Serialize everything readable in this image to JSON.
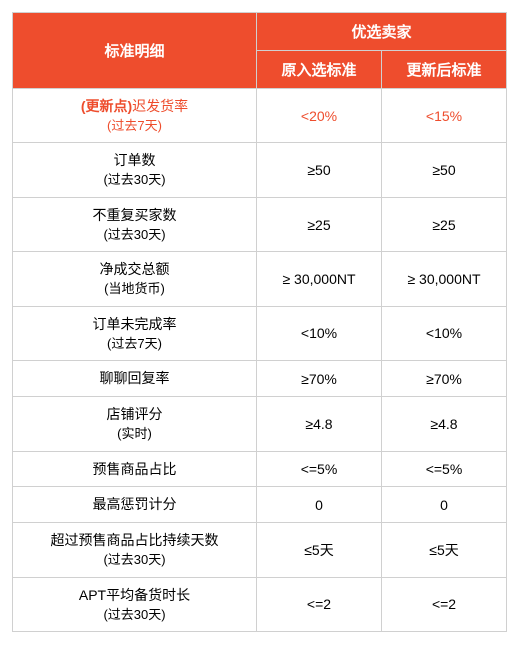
{
  "table": {
    "type": "table",
    "header_bg": "#ee4d2d",
    "header_text_color": "#ffffff",
    "border_color": "#d0d0d0",
    "highlight_color": "#ee4d2d",
    "columns": {
      "main_header": "标准明细",
      "group_header": "优选卖家",
      "sub1": "原入选标准",
      "sub2": "更新后标准"
    },
    "rows": [
      {
        "highlight": true,
        "prefix": "(更新点)",
        "label_main": "迟发货率",
        "label_sub": "(过去7天)",
        "col1": "<20%",
        "col2": "<15%"
      },
      {
        "highlight": false,
        "prefix": "",
        "label_main": "订单数",
        "label_sub": "(过去30天)",
        "col1": "≥50",
        "col2": "≥50"
      },
      {
        "highlight": false,
        "prefix": "",
        "label_main": "不重复买家数",
        "label_sub": "(过去30天)",
        "col1": "≥25",
        "col2": "≥25"
      },
      {
        "highlight": false,
        "prefix": "",
        "label_main": "净成交总额",
        "label_sub": "(当地货币)",
        "col1": "≥ 30,000NT",
        "col2": "≥ 30,000NT"
      },
      {
        "highlight": false,
        "prefix": "",
        "label_main": "订单未完成率",
        "label_sub": "(过去7天)",
        "col1": "<10%",
        "col2": "<10%"
      },
      {
        "highlight": false,
        "prefix": "",
        "label_main": "聊聊回复率",
        "label_sub": "",
        "col1": "≥70%",
        "col2": "≥70%"
      },
      {
        "highlight": false,
        "prefix": "",
        "label_main": "店铺评分",
        "label_sub": "(实时)",
        "col1": "≥4.8",
        "col2": "≥4.8"
      },
      {
        "highlight": false,
        "prefix": "",
        "label_main": "预售商品占比",
        "label_sub": "",
        "col1": "<=5%",
        "col2": "<=5%"
      },
      {
        "highlight": false,
        "prefix": "",
        "label_main": "最高惩罚计分",
        "label_sub": "",
        "col1": "0",
        "col2": "0"
      },
      {
        "highlight": false,
        "prefix": "",
        "label_main": "超过预售商品占比持续天数",
        "label_sub": "(过去30天)",
        "col1": "≤5天",
        "col2": "≤5天"
      },
      {
        "highlight": false,
        "prefix": "",
        "label_main": "APT平均备货时长",
        "label_sub": "(过去30天)",
        "col1": "<=2",
        "col2": "<=2"
      }
    ]
  }
}
